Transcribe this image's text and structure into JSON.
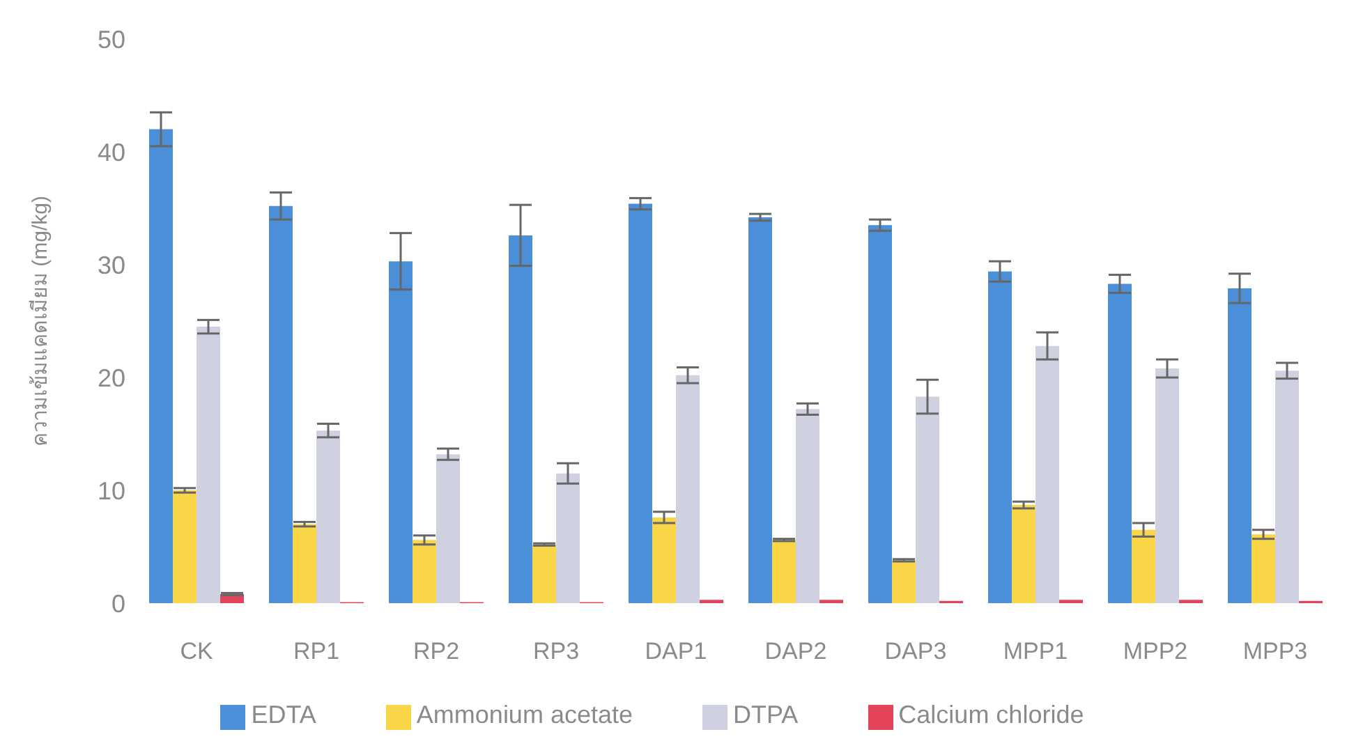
{
  "chart_data": {
    "type": "bar",
    "ylabel": "ความเข้มแคดเมียม (mg/kg)",
    "categories": [
      "CK",
      "RP1",
      "RP2",
      "RP3",
      "DAP1",
      "DAP2",
      "DAP3",
      "MPP1",
      "MPP2",
      "MPP3"
    ],
    "series": [
      {
        "name": "EDTA",
        "color": "#4a8fd8",
        "values": [
          42,
          35.2,
          30.3,
          32.6,
          35.4,
          34.2,
          33.5,
          29.4,
          28.3,
          27.9
        ],
        "errors": [
          1.5,
          1.2,
          2.5,
          2.7,
          0.5,
          0.3,
          0.5,
          0.9,
          0.8,
          1.3
        ]
      },
      {
        "name": "Ammonium acetate",
        "color": "#f9d548",
        "values": [
          10,
          7,
          5.6,
          5.2,
          7.6,
          5.6,
          3.8,
          8.7,
          6.5,
          6.1
        ],
        "errors": [
          0.2,
          0.2,
          0.4,
          0.1,
          0.5,
          0.1,
          0.1,
          0.3,
          0.6,
          0.4
        ]
      },
      {
        "name": "DTPA",
        "color": "#cfd0e0",
        "values": [
          24.5,
          15.3,
          13.2,
          11.5,
          20.2,
          17.2,
          18.3,
          22.8,
          20.8,
          20.6
        ],
        "errors": [
          0.6,
          0.6,
          0.5,
          0.9,
          0.7,
          0.5,
          1.5,
          1.2,
          0.8,
          0.7
        ]
      },
      {
        "name": "Calcium chloride",
        "color": "#e4445a",
        "values": [
          0.8,
          0.1,
          0.1,
          0.1,
          0.3,
          0.3,
          0.2,
          0.3,
          0.3,
          0.2
        ],
        "errors": [
          0.1,
          null,
          null,
          null,
          null,
          null,
          null,
          null,
          null,
          null
        ]
      }
    ],
    "ylim": [
      0,
      50
    ],
    "yticks": [
      0,
      10,
      20,
      30,
      40,
      50
    ],
    "grid": false,
    "legend": "bottom"
  }
}
